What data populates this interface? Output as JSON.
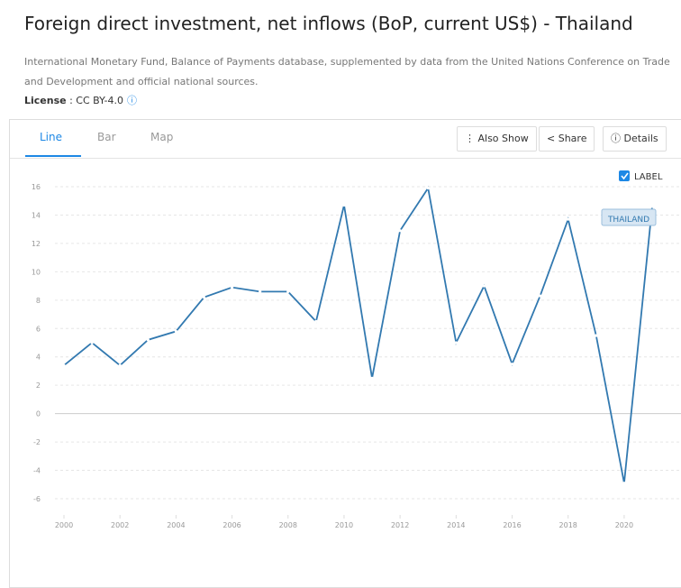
{
  "header": {
    "title": "Foreign direct investment, net inflows (BoP, current US$) - Thailand",
    "source": "International Monetary Fund, Balance of Payments database, supplemented by data from the United Nations Conference on Trade and Development and official national sources.",
    "license_label": "License",
    "license_value": ": CC BY-4.0"
  },
  "tabs": [
    "Line",
    "Bar",
    "Map"
  ],
  "buttons": [
    "Also Show",
    "Share",
    "Details"
  ],
  "label_toggle": "LABEL",
  "chart_data": {
    "type": "line",
    "x": [
      2000,
      2001,
      2002,
      2003,
      2004,
      2005,
      2006,
      2007,
      2008,
      2009,
      2010,
      2011,
      2012,
      2013,
      2014,
      2015,
      2016,
      2017,
      2018,
      2019,
      2020,
      2021
    ],
    "series": [
      {
        "name": "THAILAND",
        "color": "#3279b0",
        "values": [
          3.4,
          5.0,
          3.4,
          5.2,
          5.8,
          8.2,
          8.9,
          8.6,
          8.6,
          6.5,
          14.7,
          2.5,
          12.9,
          15.9,
          5.0,
          9.0,
          3.5,
          8.3,
          13.7,
          5.5,
          -4.9,
          14.6
        ]
      }
    ],
    "xlim": [
      2000,
      2021
    ],
    "xticks": [
      2000,
      2002,
      2004,
      2006,
      2008,
      2010,
      2012,
      2014,
      2016,
      2018,
      2020
    ],
    "ylim": [
      -6,
      16
    ],
    "yticks": [
      -6,
      -4,
      -2,
      0,
      2,
      4,
      6,
      8,
      10,
      12,
      14,
      16
    ],
    "grid": true
  }
}
